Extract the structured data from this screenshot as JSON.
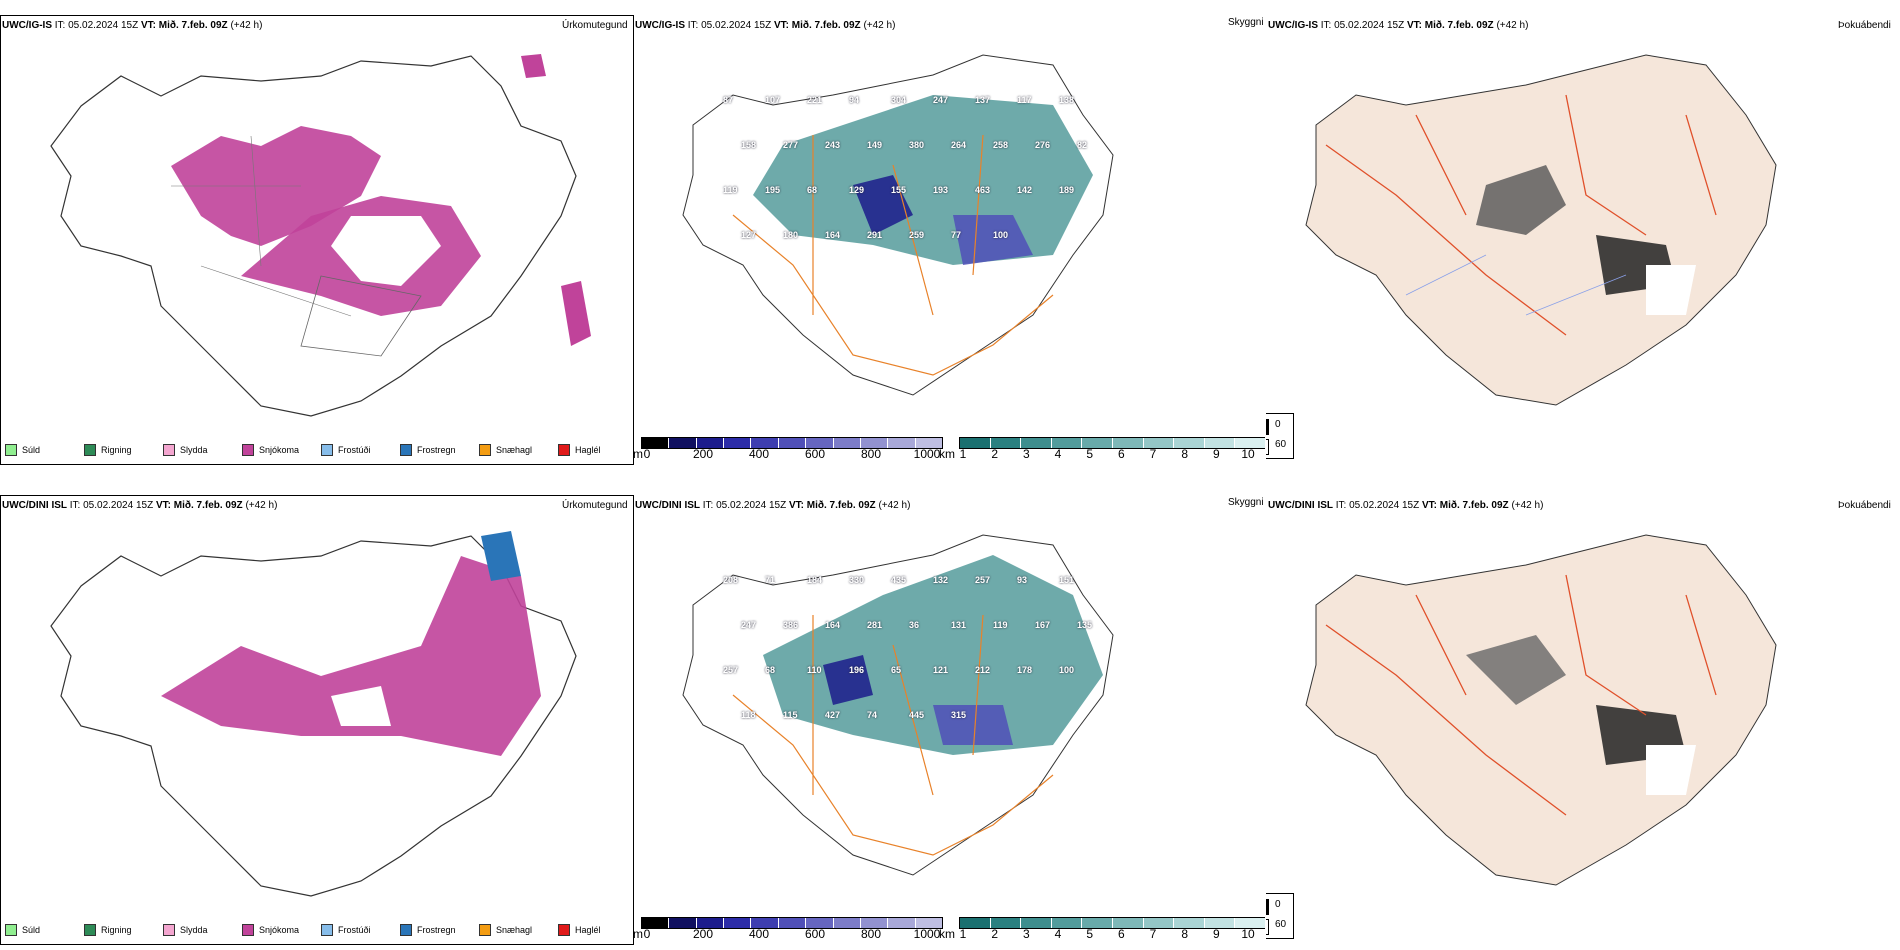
{
  "rows": [
    {
      "model": "UWC/IG-IS",
      "it": "IT: 05.02.2024 15Z",
      "vt": "VT: Mið. 7.feb. 09Z",
      "lead": "(+42 h)"
    },
    {
      "model": "UWC/DINI ISL",
      "it": "IT: 05.02.2024 15Z",
      "vt": "VT: Mið. 7.feb. 09Z",
      "lead": "(+42 h)"
    }
  ],
  "titles": {
    "precip_type": "Úrkomutegund",
    "cloud_base": "Skyggni",
    "fog": "Þokuábendi"
  },
  "precip_legend": [
    {
      "label": "Súld",
      "color": "#90ee90"
    },
    {
      "label": "Rigning",
      "color": "#2e8b57"
    },
    {
      "label": "Slydda",
      "color": "#f4a6d0"
    },
    {
      "label": "Snjókoma",
      "color": "#c0439a"
    },
    {
      "label": "Frostúði",
      "color": "#87bdea"
    },
    {
      "label": "Frostregn",
      "color": "#2a75b8"
    },
    {
      "label": "Snæhagl",
      "color": "#f39c12"
    },
    {
      "label": "Haglél",
      "color": "#e01a1a"
    }
  ],
  "scale_m": {
    "unit": "m",
    "ticks": [
      "0",
      "200",
      "400",
      "600",
      "800",
      "1000"
    ],
    "colors": [
      "#000000",
      "#101060",
      "#1c1c8c",
      "#2c2ca8",
      "#3e3eb0",
      "#5050b8",
      "#6666c0",
      "#7c7cc8",
      "#9292d0",
      "#a8a8d8",
      "#bebee2"
    ]
  },
  "scale_km": {
    "unit": "km",
    "ticks": [
      "1",
      "2",
      "3",
      "4",
      "5",
      "6",
      "7",
      "8",
      "9",
      "10"
    ],
    "colors": [
      "#1a7070",
      "#2a8080",
      "#3e8e8e",
      "#529c9c",
      "#68aaaa",
      "#7eb8b8",
      "#94c6c6",
      "#aad4d4",
      "#c2e2e2",
      "#daf0f0"
    ]
  },
  "fog_legend": {
    "top": "0",
    "bottom": "60"
  },
  "top_labels": [
    "87",
    "107",
    "221",
    "94",
    "304",
    "247",
    "137",
    "117",
    "138",
    "158",
    "277",
    "243",
    "149",
    "380",
    "264",
    "258",
    "276",
    "82",
    "119",
    "195",
    "68",
    "129",
    "155",
    "193",
    "463",
    "142",
    "189",
    "127",
    "180",
    "164",
    "291",
    "259",
    "77",
    "100"
  ],
  "bottom_labels": [
    "208",
    "71",
    "184",
    "330",
    "435",
    "132",
    "257",
    "93",
    "151",
    "247",
    "386",
    "164",
    "281",
    "36",
    "131",
    "119",
    "167",
    "135",
    "257",
    "68",
    "110",
    "196",
    "65",
    "121",
    "212",
    "178",
    "100",
    "118",
    "115",
    "427",
    "74",
    "445",
    "315"
  ]
}
